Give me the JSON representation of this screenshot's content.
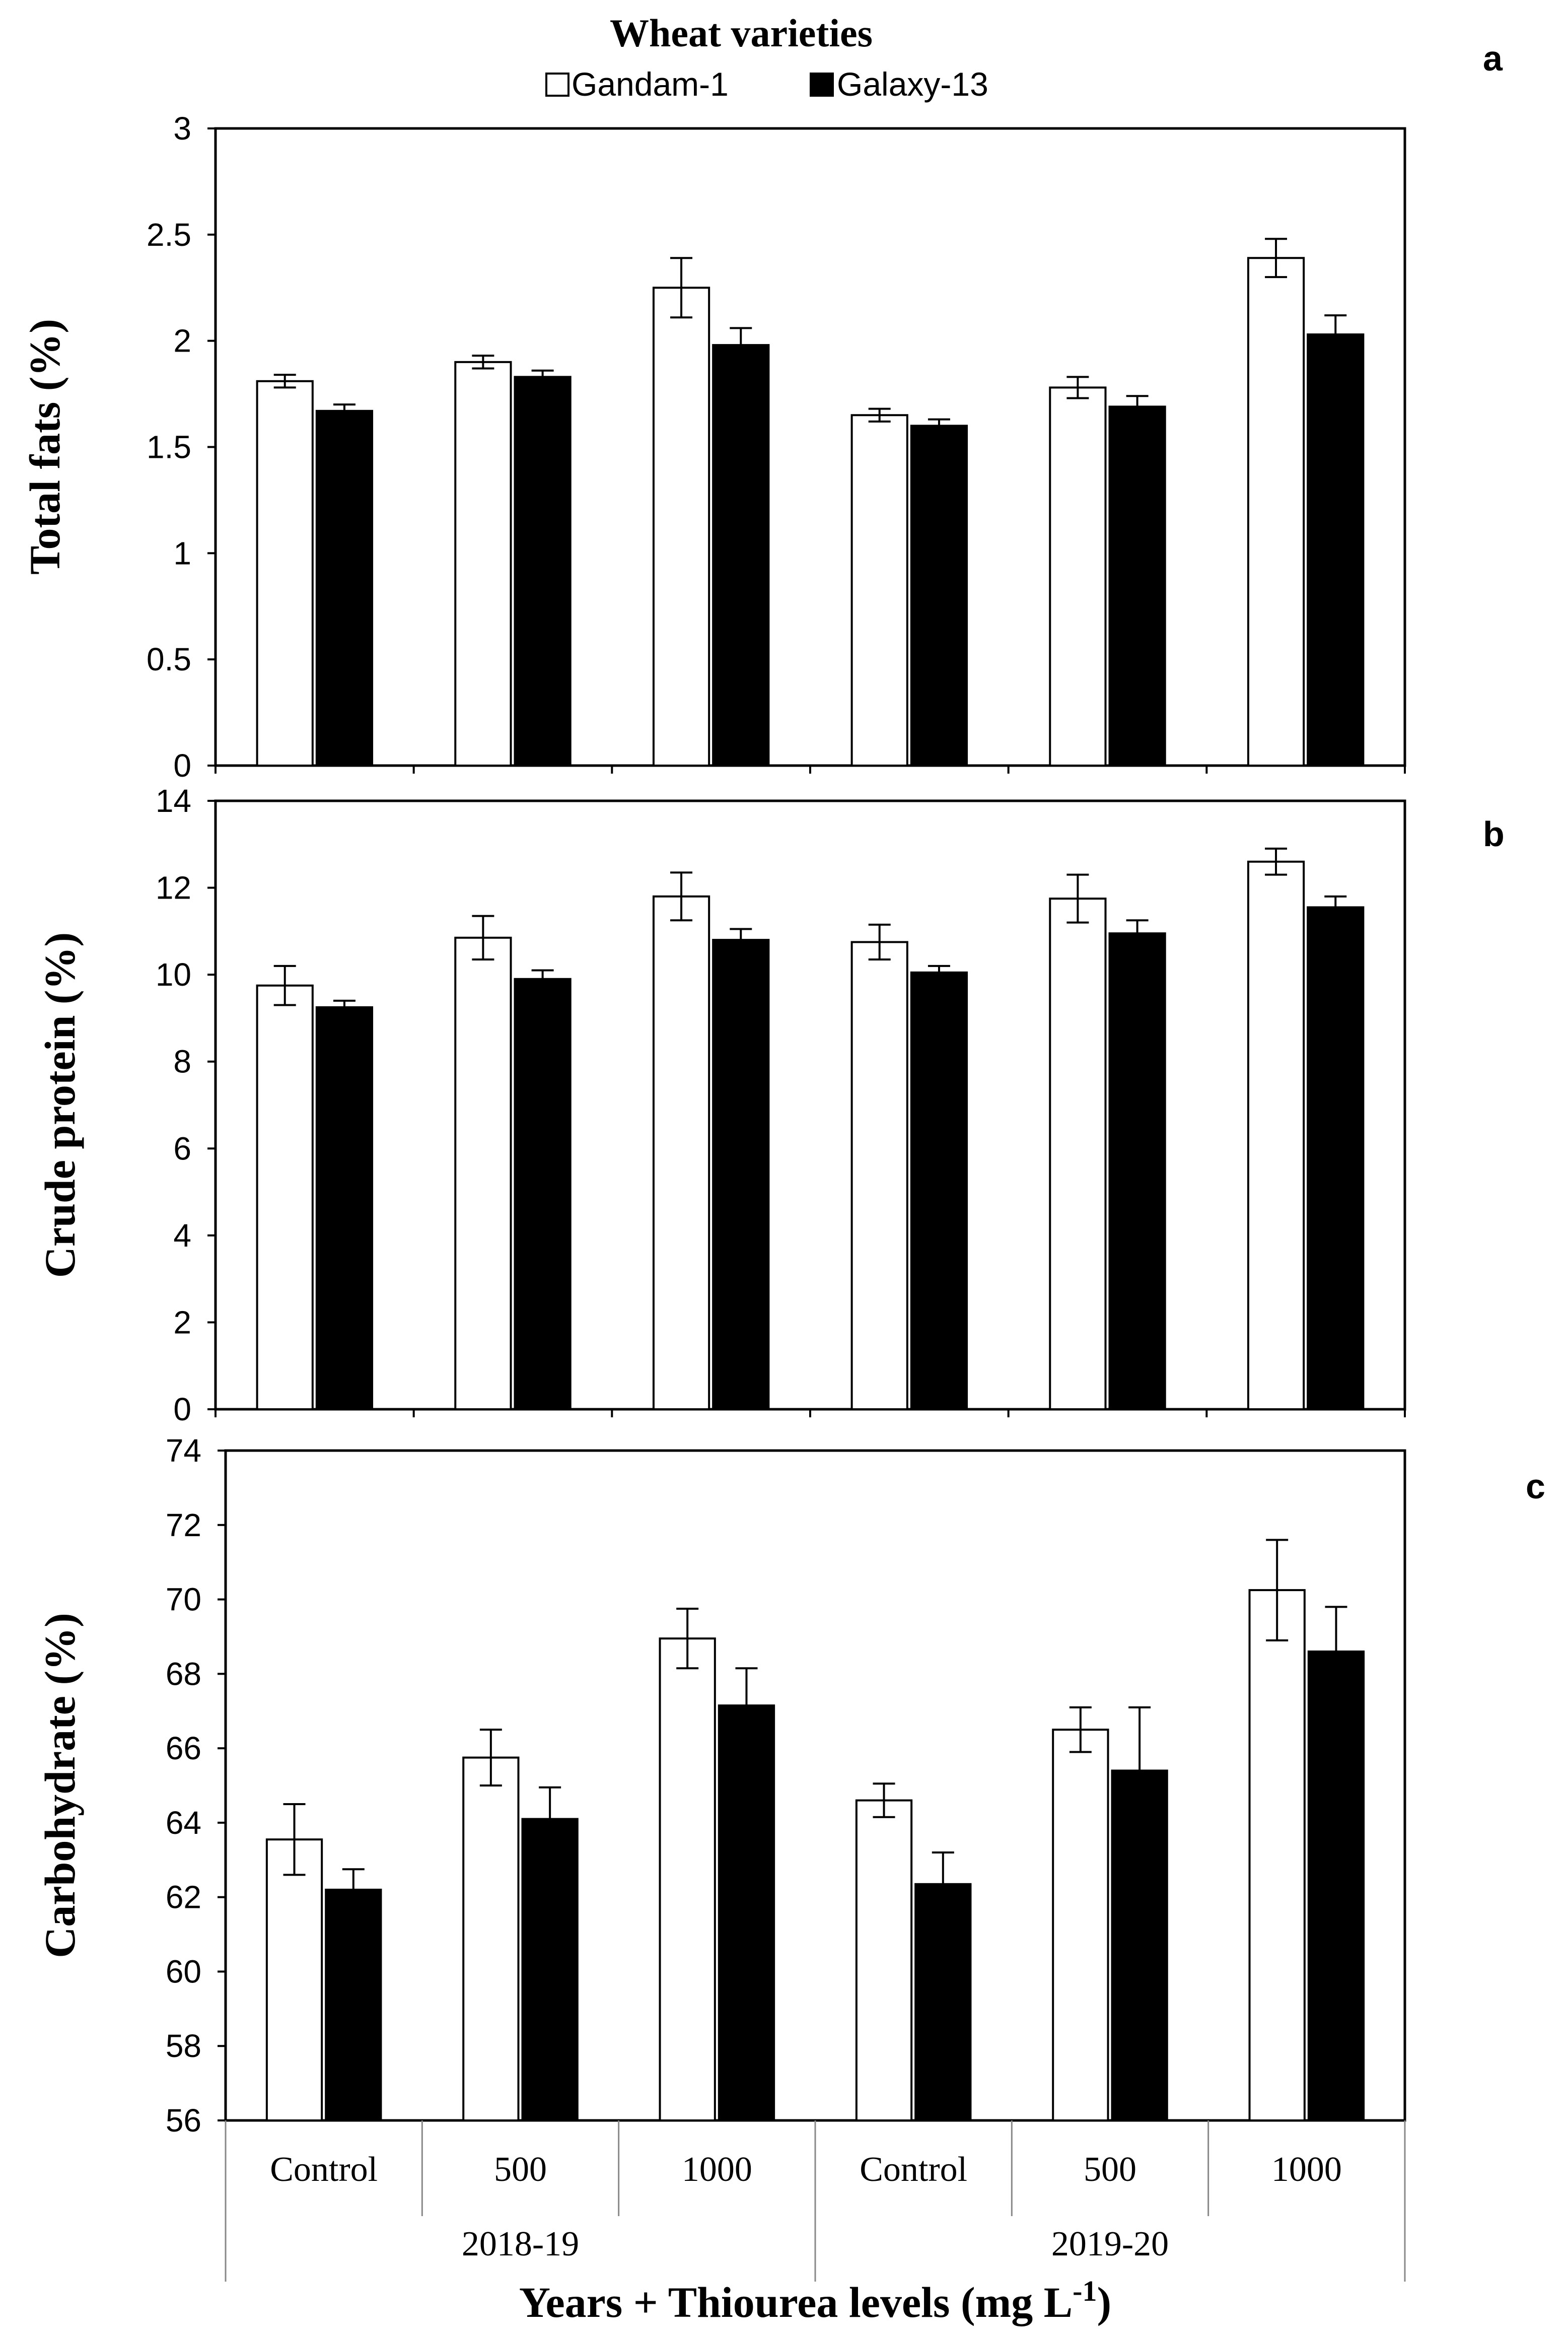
{
  "legend": {
    "title": "Wheat varieties",
    "items": [
      {
        "label": "Gandam-1",
        "color": "#ffffff"
      },
      {
        "label": "Galaxy-13",
        "color": "#000000"
      }
    ]
  },
  "chart_data": [
    {
      "type": "bar",
      "panel_label": "a",
      "ylabel": "Total fats (%)",
      "ylim": [
        0,
        3
      ],
      "yticks": [
        "0",
        "0.5",
        "1",
        "1.5",
        "2",
        "2.5",
        "3"
      ],
      "categories": [
        "Control",
        "500",
        "1000",
        "Control",
        "500",
        "1000"
      ],
      "series": [
        {
          "name": "Gandam-1",
          "values": [
            1.81,
            1.9,
            2.25,
            1.65,
            1.78,
            2.39
          ],
          "errors": [
            0.03,
            0.03,
            0.14,
            0.03,
            0.05,
            0.09
          ]
        },
        {
          "name": "Galaxy-13",
          "values": [
            1.67,
            1.83,
            1.98,
            1.6,
            1.69,
            2.03
          ],
          "errors": [
            0.03,
            0.03,
            0.08,
            0.03,
            0.05,
            0.09
          ]
        }
      ]
    },
    {
      "type": "bar",
      "panel_label": "b",
      "ylabel": "Crude protein (%)",
      "ylim": [
        0,
        14
      ],
      "yticks": [
        "0",
        "2",
        "4",
        "6",
        "8",
        "10",
        "12",
        "14"
      ],
      "categories": [
        "Control",
        "500",
        "1000",
        "Control",
        "500",
        "1000"
      ],
      "series": [
        {
          "name": "Gandam-1",
          "values": [
            9.75,
            10.85,
            11.8,
            10.75,
            11.75,
            12.6
          ],
          "errors": [
            0.45,
            0.5,
            0.55,
            0.4,
            0.55,
            0.3
          ]
        },
        {
          "name": "Galaxy-13",
          "values": [
            9.25,
            9.9,
            10.8,
            10.05,
            10.95,
            11.55
          ],
          "errors": [
            0.15,
            0.2,
            0.25,
            0.15,
            0.3,
            0.25
          ]
        }
      ]
    },
    {
      "type": "bar",
      "panel_label": "c",
      "ylabel": "Carbohydrate (%)",
      "ylim": [
        56,
        74
      ],
      "yticks": [
        "56",
        "58",
        "60",
        "62",
        "64",
        "66",
        "68",
        "70",
        "72",
        "74"
      ],
      "categories": [
        "Control",
        "500",
        "1000",
        "Control",
        "500",
        "1000"
      ],
      "series": [
        {
          "name": "Gandam-1",
          "values": [
            63.55,
            65.75,
            68.95,
            64.6,
            66.5,
            70.25
          ],
          "errors": [
            0.95,
            0.75,
            0.8,
            0.45,
            0.6,
            1.35
          ]
        },
        {
          "name": "Galaxy-13",
          "values": [
            62.2,
            64.1,
            67.15,
            62.35,
            65.4,
            68.6
          ],
          "errors": [
            0.55,
            0.85,
            1.0,
            0.85,
            1.7,
            1.2
          ]
        }
      ]
    }
  ],
  "x_axis": {
    "categories": [
      "Control",
      "500",
      "1000",
      "Control",
      "500",
      "1000"
    ],
    "groups": [
      "2018-19",
      "2019-20"
    ],
    "title": "Years + Thiourea levels (mg L",
    "title_superscript": "-1",
    "title_end": ")"
  }
}
